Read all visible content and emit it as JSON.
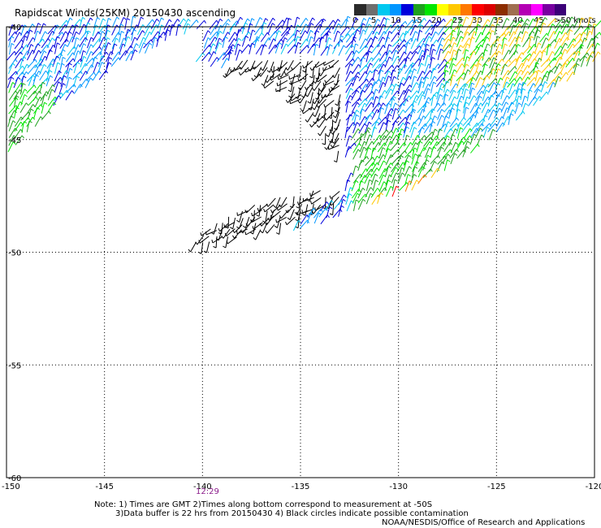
{
  "title": "Rapidscat Winds(25KM) 20150430 ascending",
  "colorbar": {
    "labels": [
      "0",
      "5",
      "10",
      "15",
      "20",
      "25",
      "30",
      "35",
      "40",
      "45",
      ">50 knots"
    ],
    "colors": [
      "#2b2b2b",
      "#6e6e6e",
      "#00c8f0",
      "#0096ff",
      "#0000dc",
      "#1ea01e",
      "#00e600",
      "#ffff00",
      "#ffc800",
      "#ff7800",
      "#ff0000",
      "#dc0000",
      "#8c2d00",
      "#a06e50",
      "#b400b4",
      "#ff00ff",
      "#7800a0",
      "#3c0078"
    ]
  },
  "map_data": {
    "lon_ticks": [
      -150,
      -145,
      -140,
      -135,
      -130,
      -125,
      -120
    ],
    "lon_tick_labels": [
      "-150",
      "-145",
      "-140",
      "-135",
      "-130",
      "-125",
      "-120"
    ],
    "lat_ticks": [
      -40,
      -45,
      -50,
      -55,
      -60
    ],
    "lat_tick_labels": [
      "-40",
      "-45",
      "-50",
      "-55",
      "-60"
    ],
    "lon_range": [
      -150,
      -120
    ],
    "lat_range": [
      -60,
      -40
    ],
    "time_labels": [
      {
        "lon": -140,
        "text": "12:29"
      }
    ],
    "wind_colors": {
      "black": "#000000",
      "blue": "#0000dc",
      "lightblue": "#0096ff",
      "cyan": "#00c8f0",
      "green": "#1ea01e",
      "lime": "#00e600",
      "yellow": "#ffc800",
      "orange": "#ff7800",
      "red": "#ff0000"
    }
  },
  "notes": {
    "line1": "Note: 1) Times are GMT 2)Times along bottom correspond to measurement at -50S",
    "line2": "3)Data buffer is 22 hrs from 20150430 4) Black circles indicate possible contamination",
    "credit": "NOAA/NESDIS/Office of Research and Applications"
  }
}
